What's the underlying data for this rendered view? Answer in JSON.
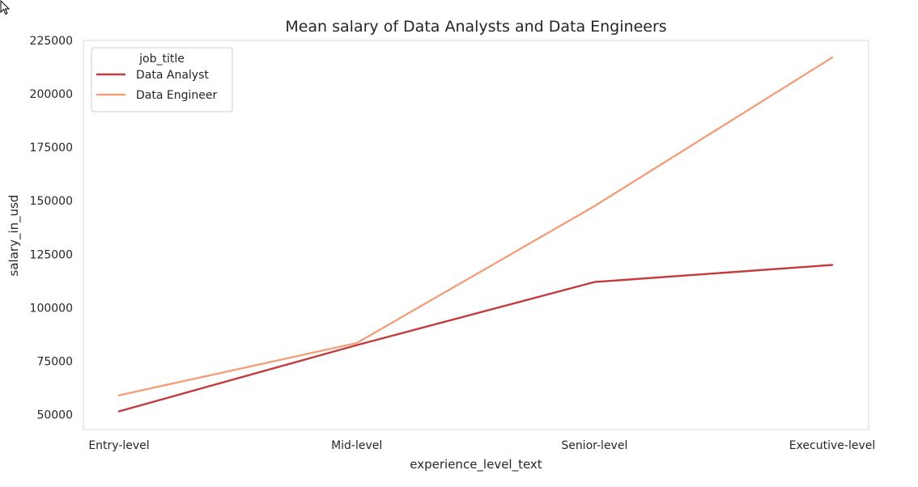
{
  "chart_data": {
    "type": "line",
    "title": "Mean salary of Data Analysts and Data Engineers",
    "xlabel": "experience_level_text",
    "ylabel": "salary_in_usd",
    "categories": [
      "Entry-level",
      "Mid-level",
      "Senior-level",
      "Executive-level"
    ],
    "ylim": [
      43000,
      225000
    ],
    "yticks": [
      50000,
      75000,
      100000,
      125000,
      150000,
      175000,
      200000,
      225000
    ],
    "grid": false,
    "legend": {
      "title": "job_title",
      "placement": "top-left"
    },
    "series": [
      {
        "name": "Data Analyst",
        "color": "#c23b3f",
        "values": [
          51500,
          82500,
          112000,
          120000
        ]
      },
      {
        "name": "Data Engineer",
        "color": "#f2a07c",
        "values": [
          59000,
          83500,
          147500,
          217000
        ]
      }
    ]
  },
  "cursor": {
    "icon": "arrow-cursor-icon"
  }
}
